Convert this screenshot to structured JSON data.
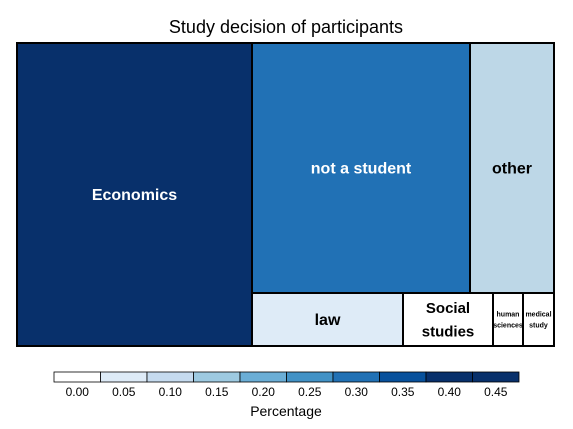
{
  "chart_data": {
    "type": "treemap",
    "title": "Study decision of participants",
    "items": [
      {
        "label": "Economics",
        "value": 0.4,
        "color": "#08306b"
      },
      {
        "label": "not a student",
        "value": 0.28,
        "color": "#2171b5"
      },
      {
        "label": "other",
        "value": 0.11,
        "color": "#bdd7e7"
      },
      {
        "label": "law",
        "value": 0.07,
        "color": "#deebf7"
      },
      {
        "label": "Social studies",
        "value": 0.04,
        "color": "#ffffff"
      },
      {
        "label": "human sciences",
        "value": 0.01,
        "color": "#ffffff"
      },
      {
        "label": "medical study",
        "value": 0.01,
        "color": "#ffffff"
      }
    ],
    "legend": {
      "title": "Percentage",
      "ticks": [
        "0.00",
        "0.05",
        "0.10",
        "0.15",
        "0.20",
        "0.25",
        "0.30",
        "0.35",
        "0.40",
        "0.45"
      ],
      "colors": [
        "#ffffff",
        "#deebf7",
        "#c6dbef",
        "#9ecae1",
        "#6baed6",
        "#4292c6",
        "#2171b5",
        "#08519c",
        "#08306b",
        "#08306b"
      ]
    }
  }
}
